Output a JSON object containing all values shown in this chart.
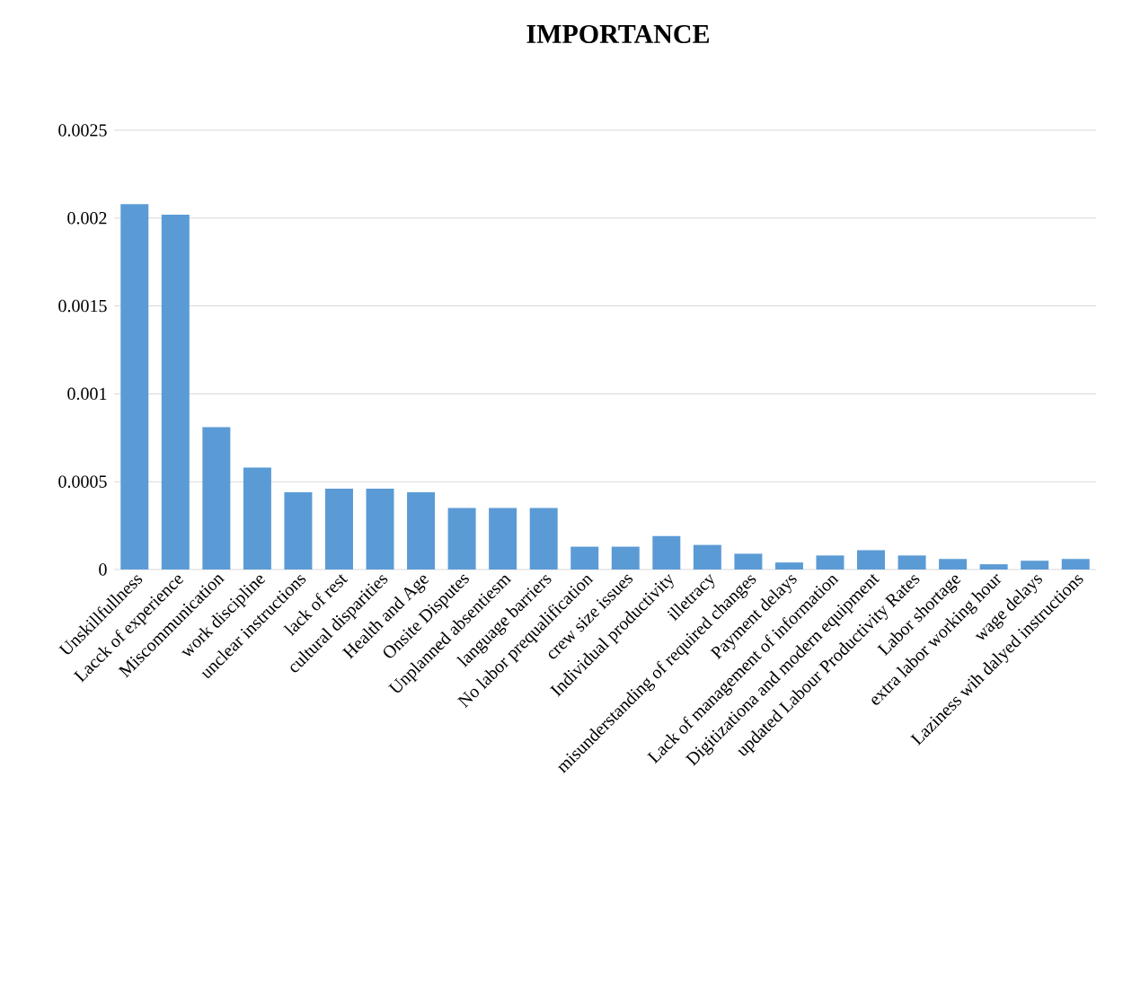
{
  "chart_data": {
    "type": "bar",
    "title": "IMPORTANCE",
    "categories": [
      "Unskillfullness",
      "Lacck of experience",
      "Miscommunication",
      "work discipline",
      "unclear instructions",
      "lack of rest",
      "cultural disparities",
      "Health and Age",
      "Onsite Disputes",
      "Unplanned absentiesm",
      "language barriers",
      "No labor prequalification",
      "crew size issues",
      "Individual productivity",
      "illetracy",
      "misunderstanding of required changes",
      "Payment delays",
      "Lack of management of information",
      "Digitizationa and modern equipment",
      "updated Labour Productivity Rates",
      "Labor shortage",
      "extra labor working hour",
      "wage delays",
      "Laziness wih dalyed instructions"
    ],
    "values": [
      0.00208,
      0.00202,
      0.00081,
      0.00058,
      0.00044,
      0.00046,
      0.00046,
      0.00044,
      0.00035,
      0.00035,
      0.00035,
      0.00013,
      0.00013,
      0.00019,
      0.00014,
      9e-05,
      4e-05,
      8e-05,
      0.00011,
      8e-05,
      6e-05,
      3e-05,
      5e-05,
      6e-05
    ],
    "color": "#5b9bd5",
    "ylim": [
      0,
      0.0025
    ],
    "yticks": [
      0,
      0.0005,
      0.001,
      0.0015,
      0.002,
      0.0025
    ],
    "grid": "y"
  }
}
